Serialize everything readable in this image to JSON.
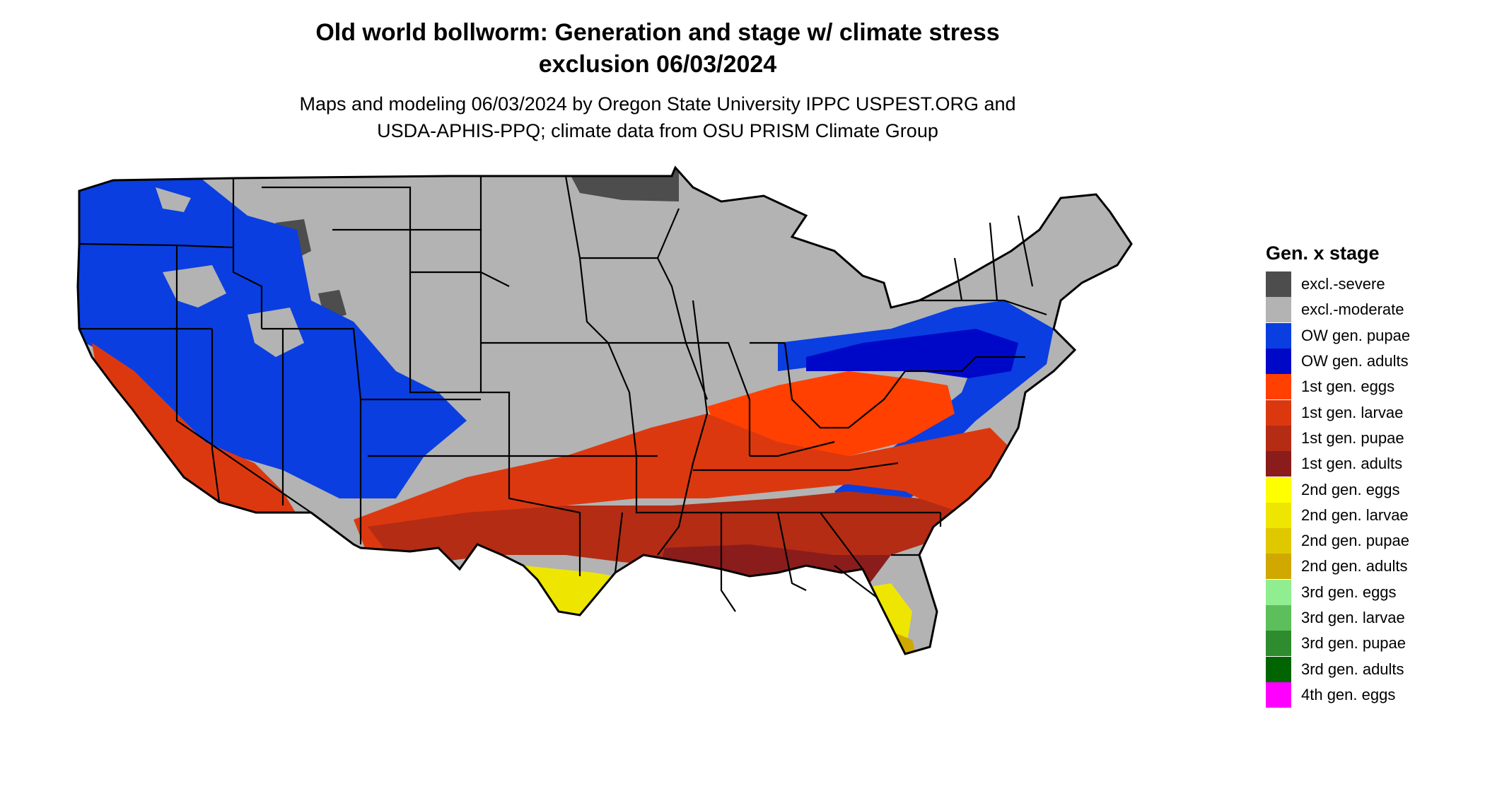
{
  "title_line1": "Old world bollworm: Generation and stage w/ climate stress",
  "title_line2": "exclusion 06/03/2024",
  "subtitle_line1": "Maps and modeling 06/03/2024 by Oregon State University IPPC USPEST.ORG and",
  "subtitle_line2": "USDA-APHIS-PPQ; climate data from OSU PRISM Climate Group",
  "legend": {
    "title": "Gen. x stage",
    "items": [
      {
        "label": "excl.-severe",
        "color": "#4d4d4d"
      },
      {
        "label": "excl.-moderate",
        "color": "#b3b3b3"
      },
      {
        "label": "OW gen. pupae",
        "color": "#0a3ee0"
      },
      {
        "label": "OW gen. adults",
        "color": "#0008c8"
      },
      {
        "label": "1st gen. eggs",
        "color": "#ff4000"
      },
      {
        "label": "1st gen. larvae",
        "color": "#dc3810"
      },
      {
        "label": "1st gen. pupae",
        "color": "#b42c14"
      },
      {
        "label": "1st gen. adults",
        "color": "#8b1c1c"
      },
      {
        "label": "2nd gen. eggs",
        "color": "#ffff00"
      },
      {
        "label": "2nd gen. larvae",
        "color": "#eee600"
      },
      {
        "label": "2nd gen. pupae",
        "color": "#e0c800"
      },
      {
        "label": "2nd gen. adults",
        "color": "#d0a800"
      },
      {
        "label": "3rd gen. eggs",
        "color": "#90ee90"
      },
      {
        "label": "3rd gen. larvae",
        "color": "#5cbf5c"
      },
      {
        "label": "3rd gen. pupae",
        "color": "#2e8b2e"
      },
      {
        "label": "3rd gen. adults",
        "color": "#006400"
      },
      {
        "label": "4th gen. eggs",
        "color": "#ff00ff"
      }
    ]
  }
}
